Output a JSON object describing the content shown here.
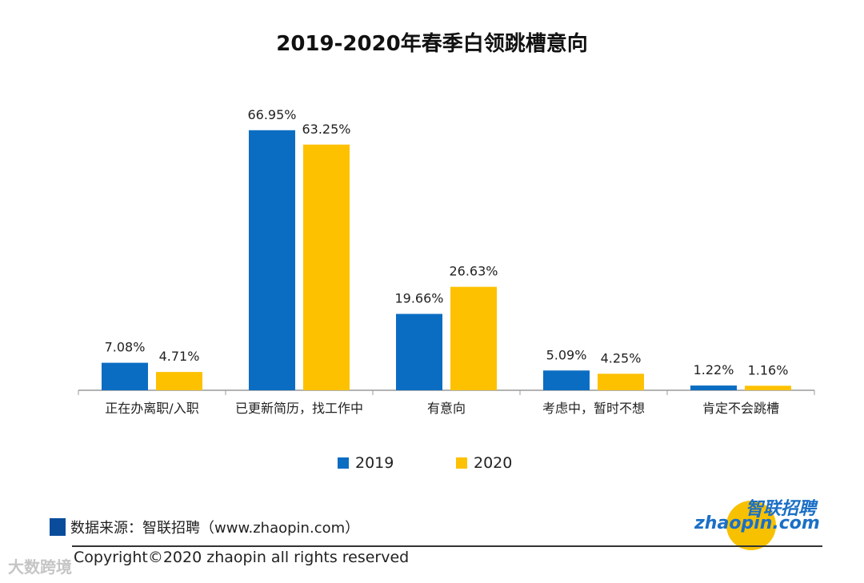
{
  "chart_data": {
    "type": "bar",
    "title": "2019-2020年春季白领跳槽意向",
    "categories": [
      "正在办离职/入职",
      "已更新简历，找工作中",
      "有意向",
      "考虑中，暂时不想",
      "肯定不会跳槽"
    ],
    "series": [
      {
        "name": "2019",
        "values": [
          7.08,
          66.95,
          19.66,
          5.09,
          1.22
        ],
        "labels": [
          "7.08%",
          "66.95%",
          "19.66%",
          "5.09%",
          "1.22%"
        ],
        "color": "#0b6dc2"
      },
      {
        "name": "2020",
        "values": [
          4.71,
          63.25,
          26.63,
          4.25,
          1.16
        ],
        "labels": [
          "4.71%",
          "63.25%",
          "26.63%",
          "4.25%",
          "1.16%"
        ],
        "color": "#fdc100"
      }
    ],
    "ylim": [
      0,
      70
    ],
    "xlabel": "",
    "ylabel": "",
    "grid": false,
    "legend": "bottom-center"
  },
  "source": {
    "label": "数据来源：智联招聘（www.zhaopin.com）"
  },
  "copyright": "Copyright©2020 zhaopin all rights reserved",
  "logo": {
    "cn": "智联招聘",
    "en": "zhaopin.com"
  },
  "watermark": "大数跨境"
}
